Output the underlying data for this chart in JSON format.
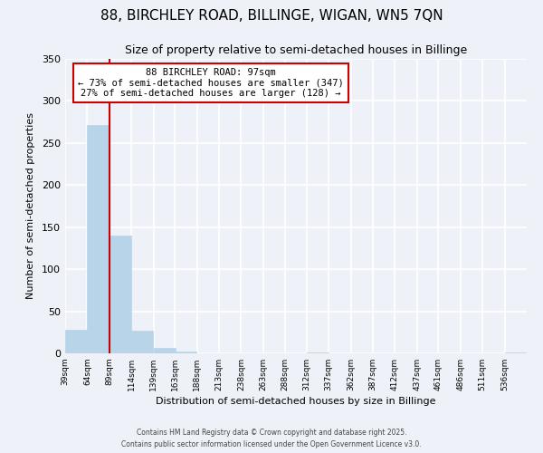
{
  "title": "88, BIRCHLEY ROAD, BILLINGE, WIGAN, WN5 7QN",
  "subtitle": "Size of property relative to semi-detached houses in Billinge",
  "xlabel": "Distribution of semi-detached houses by size in Billinge",
  "ylabel": "Number of semi-detached properties",
  "bins": [
    39,
    64,
    89,
    114,
    139,
    163,
    188,
    213,
    238,
    263,
    288,
    312,
    337,
    362,
    387,
    412,
    437,
    461,
    486,
    511,
    536
  ],
  "bin_labels": [
    "39sqm",
    "64sqm",
    "89sqm",
    "114sqm",
    "139sqm",
    "163sqm",
    "188sqm",
    "213sqm",
    "238sqm",
    "263sqm",
    "288sqm",
    "312sqm",
    "337sqm",
    "362sqm",
    "387sqm",
    "412sqm",
    "437sqm",
    "461sqm",
    "486sqm",
    "511sqm",
    "536sqm"
  ],
  "counts": [
    28,
    271,
    140,
    27,
    6,
    2,
    0,
    0,
    0,
    0,
    0,
    1,
    0,
    0,
    0,
    0,
    0,
    0,
    0,
    0,
    1
  ],
  "bar_color": "#b8d4e8",
  "property_line_x": 89,
  "annotation_line1": "88 BIRCHLEY ROAD: 97sqm",
  "annotation_line2": "← 73% of semi-detached houses are smaller (347)",
  "annotation_line3": "27% of semi-detached houses are larger (128) →",
  "annotation_box_color": "#cc0000",
  "ylim": [
    0,
    350
  ],
  "yticks": [
    0,
    50,
    100,
    150,
    200,
    250,
    300,
    350
  ],
  "footer_line1": "Contains HM Land Registry data © Crown copyright and database right 2025.",
  "footer_line2": "Contains public sector information licensed under the Open Government Licence v3.0.",
  "background_color": "#eef2f8",
  "grid_color": "#ffffff",
  "title_fontsize": 11,
  "subtitle_fontsize": 9
}
